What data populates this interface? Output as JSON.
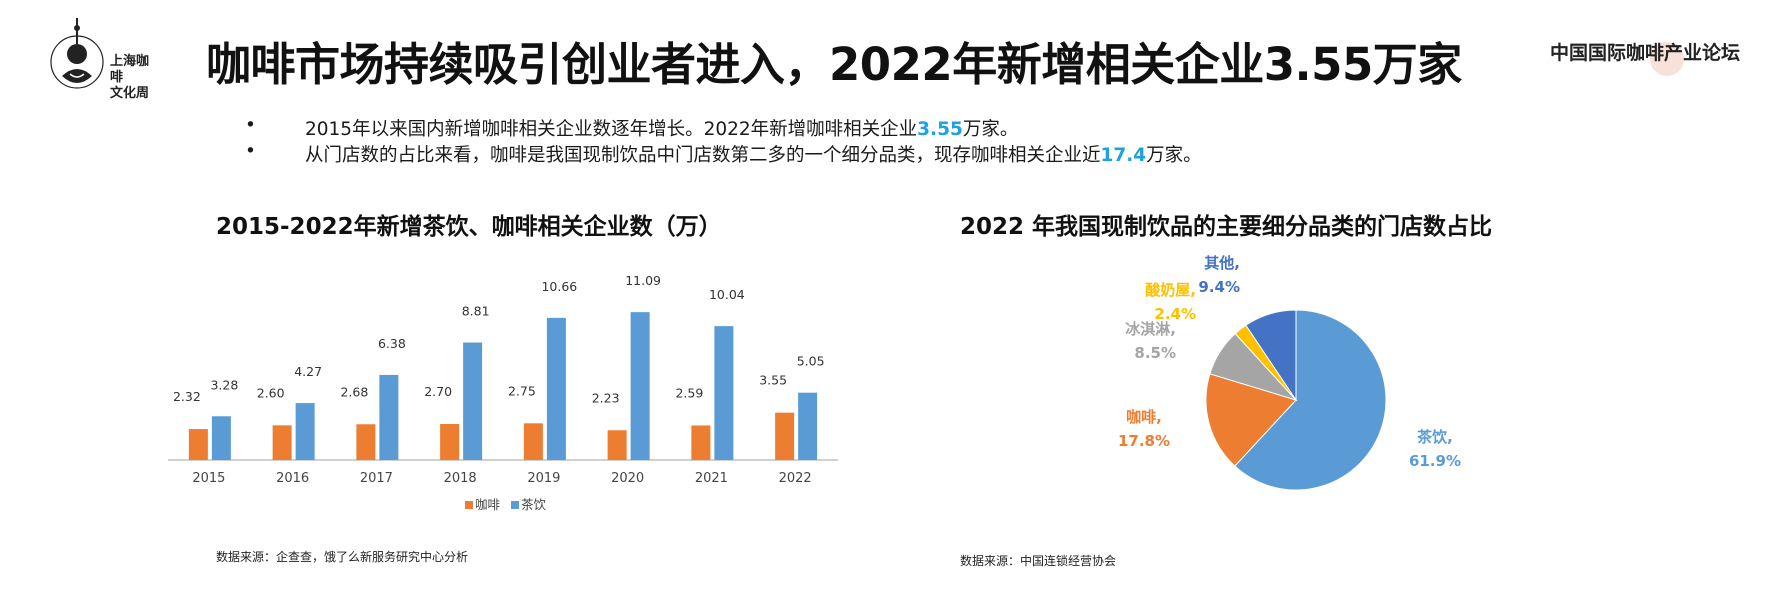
{
  "header": {
    "title": "咖啡市场持续吸引创业者进入，2022年新增相关企业3.55万家",
    "logo_left": {
      "line1": "上海咖啡",
      "line2": "文化周"
    },
    "logo_right": "中国国际咖啡产业论坛"
  },
  "bullets": [
    {
      "bullet": "•",
      "before": "2015年以来国内新增咖啡相关企业数逐年增长。2022年新增咖啡相关企业",
      "highlight": "3.55",
      "after": "万家。"
    },
    {
      "bullet": "•",
      "before": "从门店数的占比来看，咖啡是我国现制饮品中门店数第二多的一个细分品类，现存咖啡相关企业近",
      "highlight": "17.4",
      "after": "万家。"
    }
  ],
  "colors": {
    "coffee": "#ed7d31",
    "tea": "#5b9bd5",
    "gray": "#a5a5a5",
    "yellow": "#ffc000",
    "other": "#4472c4",
    "highlight": "#1fa1e0"
  },
  "left_chart": {
    "title": "2015-2022年新增茶饮、咖啡相关企业数（万）",
    "source": "数据来源：企查查，饿了么新服务研究中心分析"
  },
  "right_chart": {
    "title": "2022 年我国现制饮品的主要细分品类的门店数占比",
    "source": "数据来源：中国连锁经营协会"
  },
  "chart_data": [
    {
      "type": "bar",
      "title": "2015-2022年新增茶饮、咖啡相关企业数（万）",
      "categories": [
        "2015",
        "2016",
        "2017",
        "2018",
        "2019",
        "2020",
        "2021",
        "2022"
      ],
      "series": [
        {
          "name": "咖啡",
          "color": "#ed7d31",
          "values": [
            2.32,
            2.6,
            2.68,
            2.7,
            2.75,
            2.23,
            2.59,
            3.55
          ]
        },
        {
          "name": "茶饮",
          "color": "#5b9bd5",
          "values": [
            3.28,
            4.27,
            6.38,
            8.81,
            10.66,
            11.09,
            10.04,
            5.05
          ]
        }
      ],
      "value_labels": {
        "咖啡": [
          "2.32",
          "2.60",
          "2.68",
          "2.70",
          "2.75",
          "2.23",
          "2.59",
          "3.55"
        ],
        "茶饮": [
          "3.28",
          "4.27",
          "6.38",
          "8.81",
          "10.66",
          "11.09",
          "10.04",
          "5.05"
        ]
      },
      "ylim": [
        0,
        12
      ],
      "grid": false,
      "legend": "bottom"
    },
    {
      "type": "pie",
      "title": "2022 年我国现制饮品的主要细分品类的门店数占比",
      "slices": [
        {
          "name": "茶饮",
          "value": 61.9,
          "label": "61.9%",
          "color": "#5b9bd5"
        },
        {
          "name": "咖啡",
          "value": 17.8,
          "label": "17.8%",
          "color": "#ed7d31"
        },
        {
          "name": "冰淇淋",
          "value": 8.5,
          "label": "8.5%",
          "color": "#a5a5a5"
        },
        {
          "name": "酸奶屋",
          "value": 2.4,
          "label": "2.4%",
          "color": "#ffc000"
        },
        {
          "name": "其他",
          "value": 9.4,
          "label": "9.4%",
          "color": "#4472c4"
        }
      ],
      "legend": "none"
    }
  ]
}
